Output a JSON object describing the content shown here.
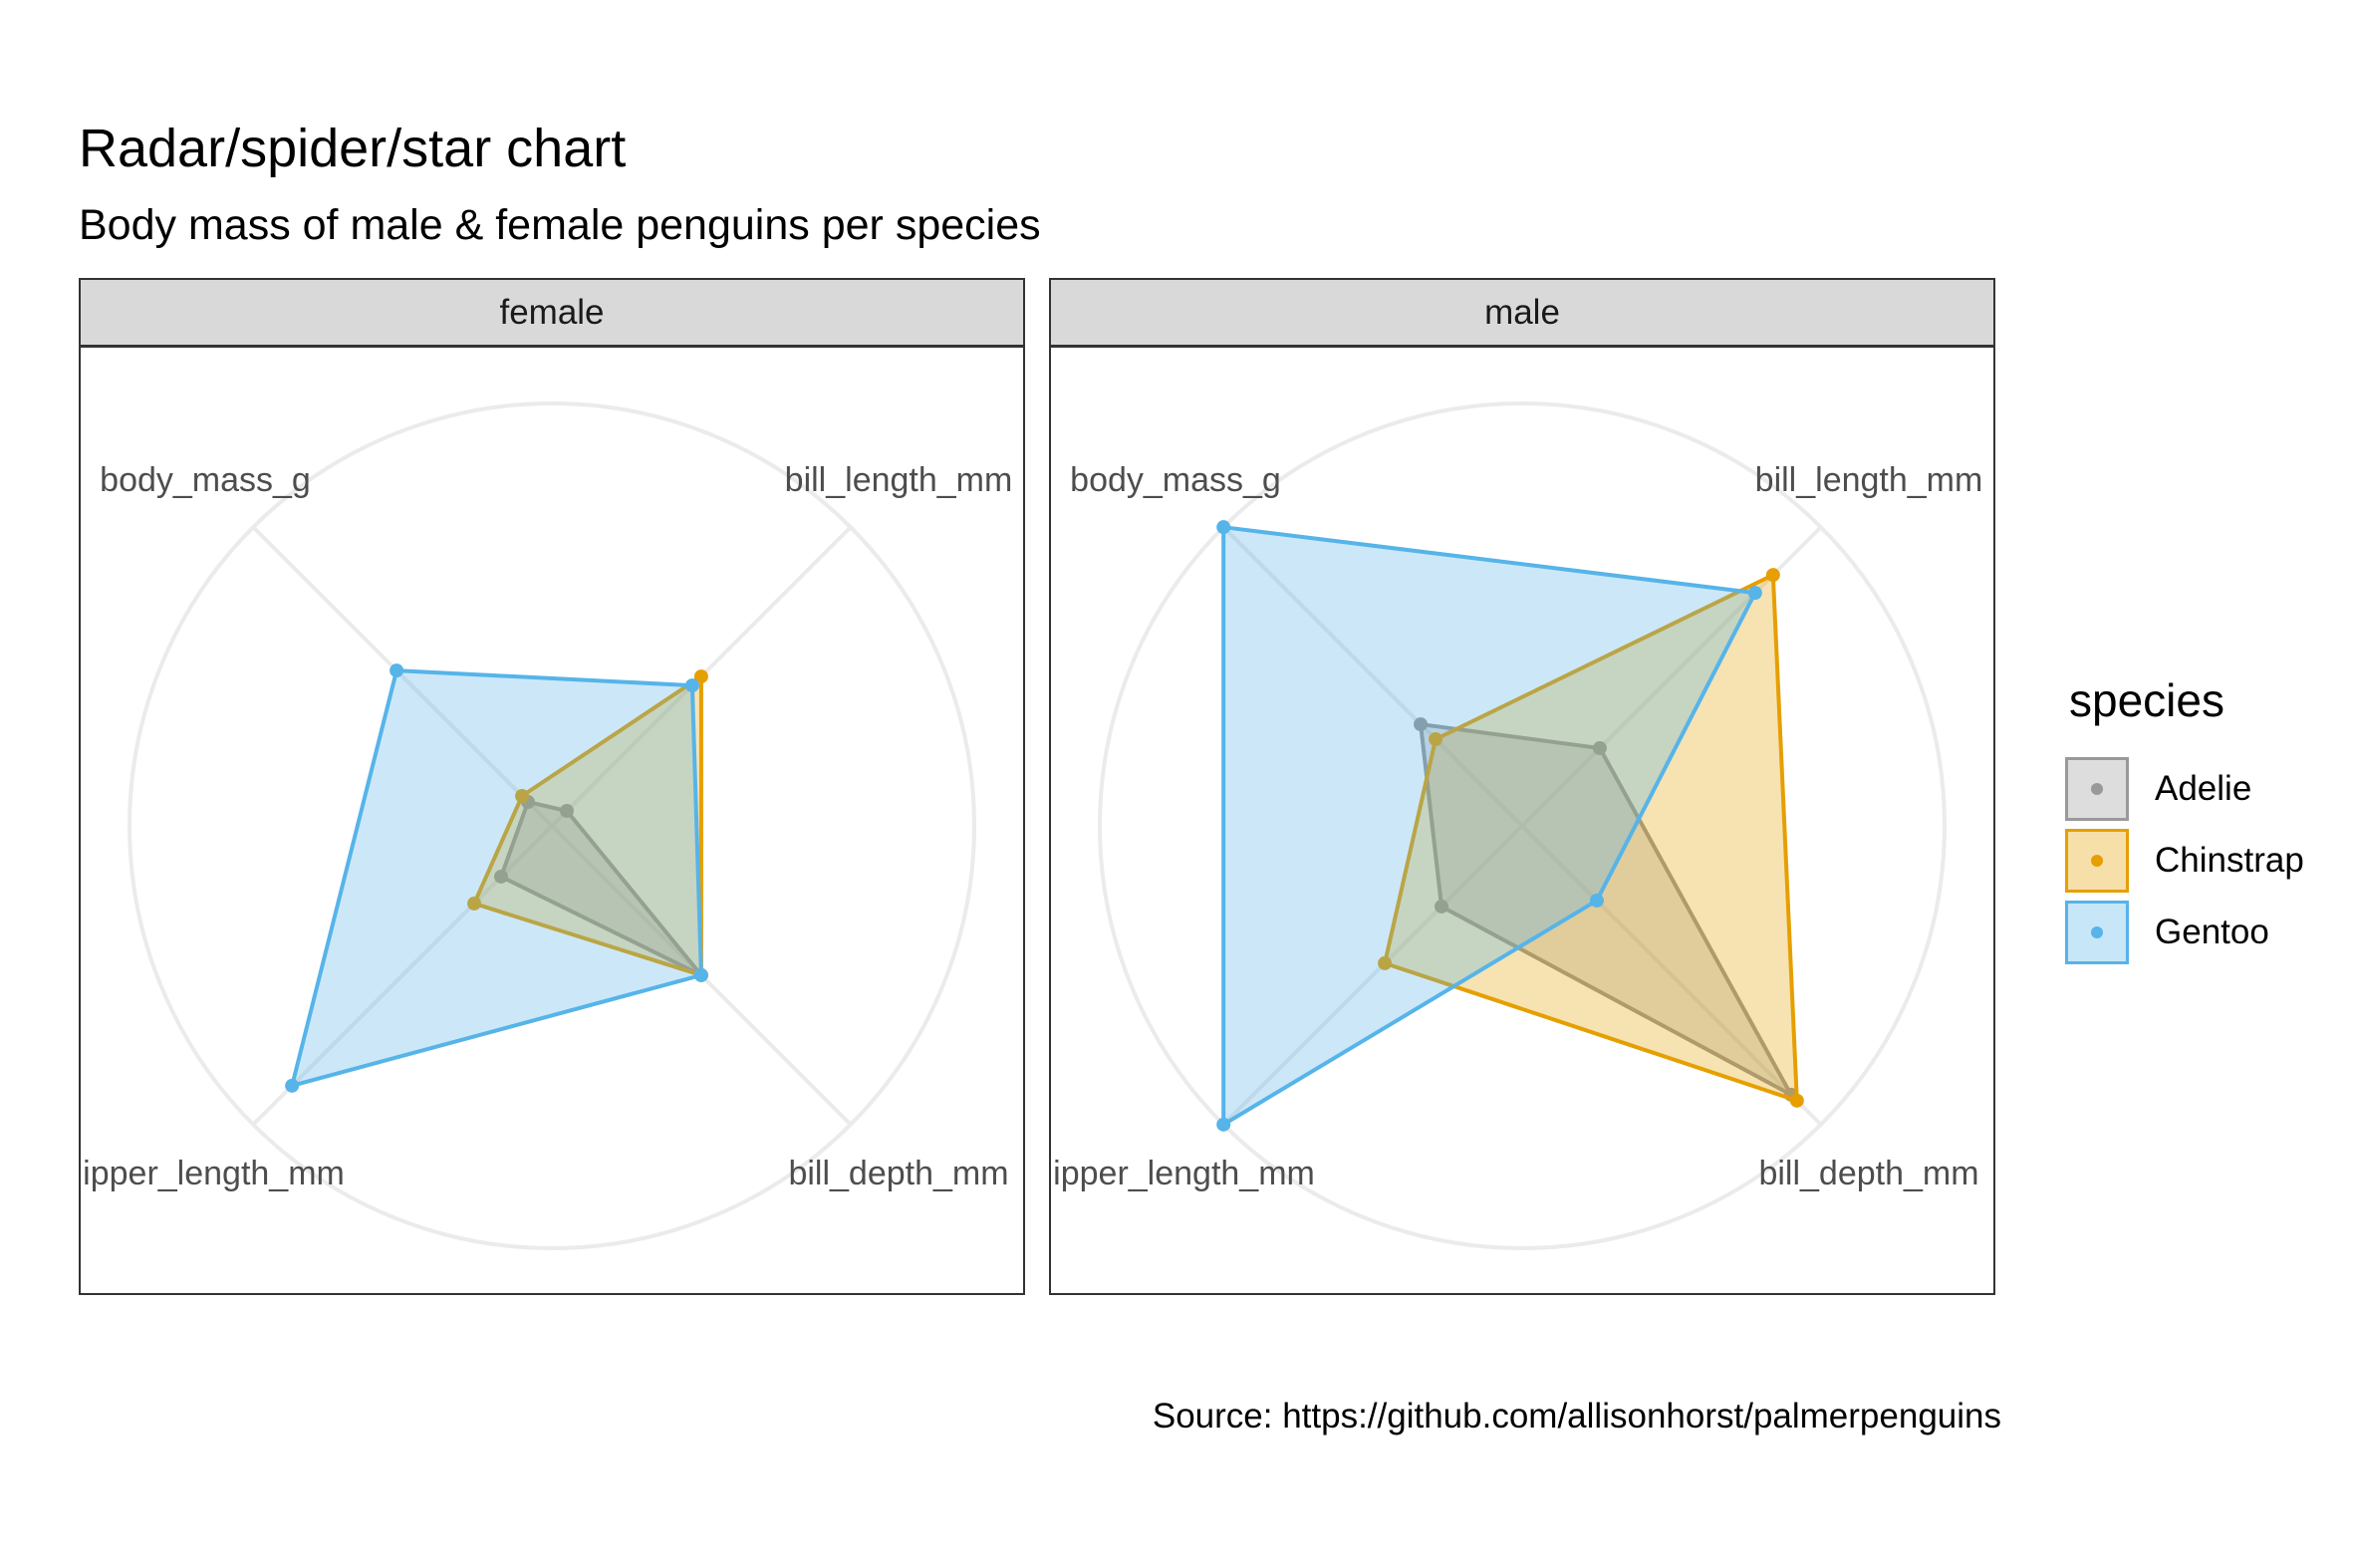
{
  "title": "Radar/spider/star chart",
  "subtitle": "Body mass of male & female penguins per species",
  "caption": "Source: https://github.com/allisonhorst/palmerpenguins",
  "legend": {
    "title": "species",
    "items": [
      {
        "label": "Adelie",
        "color": "#999999"
      },
      {
        "label": "Chinstrap",
        "color": "#E69F00"
      },
      {
        "label": "Gentoo",
        "color": "#56B4E9"
      }
    ]
  },
  "chart_data": {
    "type": "radar",
    "title": "Radar/spider/star chart",
    "subtitle": "Body mass of male & female penguins per species",
    "axes": [
      "bill_length_mm",
      "bill_depth_mm",
      "flipper_length_mm",
      "body_mass_g"
    ],
    "r_range": [
      0,
      1
    ],
    "grid": true,
    "legend_position": "right",
    "facets": [
      {
        "name": "female",
        "series": [
          {
            "name": "Adelie",
            "values": [
              0.05,
              0.5,
              0.17,
              0.08
            ]
          },
          {
            "name": "Chinstrap",
            "values": [
              0.5,
              0.5,
              0.26,
              0.1
            ]
          },
          {
            "name": "Gentoo",
            "values": [
              0.47,
              0.5,
              0.87,
              0.52
            ]
          }
        ]
      },
      {
        "name": "male",
        "series": [
          {
            "name": "Adelie",
            "values": [
              0.26,
              0.9,
              0.27,
              0.34
            ]
          },
          {
            "name": "Chinstrap",
            "values": [
              0.84,
              0.92,
              0.46,
              0.29
            ]
          },
          {
            "name": "Gentoo",
            "values": [
              0.78,
              0.25,
              1.0,
              1.0
            ]
          }
        ]
      }
    ]
  }
}
